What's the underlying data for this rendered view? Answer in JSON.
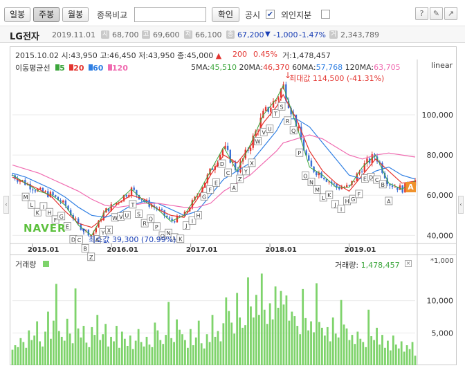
{
  "toolbar": {
    "periods": [
      {
        "label": "일봉",
        "active": false
      },
      {
        "label": "주봉",
        "active": true
      },
      {
        "label": "월봉",
        "active": false
      }
    ],
    "compare_label": "종목비교",
    "compare_value": "",
    "confirm_label": "확인",
    "disclosure_label": "공시",
    "disclosure_checked": true,
    "foreign_label": "외인지분",
    "foreign_checked": false,
    "tool_icons": [
      "pin-icon",
      "eraser-icon",
      "trend-icon"
    ]
  },
  "stock": {
    "name": "LG전자",
    "date": "2019.11.01",
    "open": "68,700",
    "high": "69,600",
    "low": "66,100",
    "close": "67,200",
    "change": "-1,000",
    "change_pct": "-1.47%",
    "volume": "2,343,789",
    "icons": [
      "open-icon",
      "high-icon",
      "low-icon",
      "close-icon",
      "volume-icon"
    ]
  },
  "ohlc": {
    "date": "2015.10.02",
    "open_label": "시:",
    "open": "43,950",
    "high_label": "고:",
    "high": "46,450",
    "low_label": "저:",
    "low": "43,950",
    "close_label": "종:",
    "close": "45,000",
    "change": "200",
    "change_pct": "0.45%",
    "volume_label": "거:",
    "volume": "1,478,457"
  },
  "ma_legend": {
    "title": "이동평균선",
    "items": [
      {
        "label": "5",
        "color": "#3ca63c"
      },
      {
        "label": "20",
        "color": "#e3342f"
      },
      {
        "label": "60",
        "color": "#2f7fe3"
      },
      {
        "label": "120",
        "color": "#f06ab0"
      }
    ]
  },
  "ma_values": [
    {
      "label": "5MA:",
      "value": "45,510",
      "color": "#3ca63c"
    },
    {
      "label": "20MA:",
      "value": "46,370",
      "color": "#e3342f"
    },
    {
      "label": "60MA:",
      "value": "57,768",
      "color": "#2f7fe3"
    },
    {
      "label": "120MA:",
      "value": "63,705",
      "color": "#f06ab0"
    }
  ],
  "scale_label": "linear",
  "annotations": {
    "max_label": "최대값 114,500 (-41.31%)",
    "min_label": "최소값 39,300 (70.99%)",
    "watermark": "NAVER",
    "latest_badge": "A"
  },
  "volume_panel": {
    "label": "거래량",
    "value_label": "거래량:",
    "value": "1,478,457",
    "unit": "*1,000",
    "color": "#7ed36b"
  },
  "chart_data": [
    {
      "type": "candlestick",
      "title": "",
      "x_ticks": [
        "2015.01",
        "2016.01",
        "2017.01",
        "2018.01",
        "2019.01"
      ],
      "y_ticks": [
        "40,000",
        "60,000",
        "80,000",
        "100,000"
      ],
      "ylim": [
        36000,
        122000
      ],
      "up_color": "#e3342f",
      "down_color": "#3a6fd6",
      "close_series": [
        {
          "t": "2014.10",
          "v": 70000
        },
        {
          "t": "2014.12",
          "v": 66000
        },
        {
          "t": "2015.02",
          "v": 62000
        },
        {
          "t": "2015.04",
          "v": 60000
        },
        {
          "t": "2015.06",
          "v": 55000
        },
        {
          "t": "2015.08",
          "v": 45000
        },
        {
          "t": "2015.10",
          "v": 40000
        },
        {
          "t": "2015.12",
          "v": 52000
        },
        {
          "t": "2016.02",
          "v": 57000
        },
        {
          "t": "2016.04",
          "v": 63000
        },
        {
          "t": "2016.06",
          "v": 57000
        },
        {
          "t": "2016.08",
          "v": 53000
        },
        {
          "t": "2016.10",
          "v": 47000
        },
        {
          "t": "2016.12",
          "v": 50000
        },
        {
          "t": "2017.02",
          "v": 60000
        },
        {
          "t": "2017.04",
          "v": 72000
        },
        {
          "t": "2017.06",
          "v": 84000
        },
        {
          "t": "2017.08",
          "v": 72000
        },
        {
          "t": "2017.10",
          "v": 85000
        },
        {
          "t": "2017.12",
          "v": 100000
        },
        {
          "t": "2018.02",
          "v": 108000
        },
        {
          "t": "2018.03",
          "v": 114500
        },
        {
          "t": "2018.05",
          "v": 95000
        },
        {
          "t": "2018.07",
          "v": 74000
        },
        {
          "t": "2018.09",
          "v": 70000
        },
        {
          "t": "2018.11",
          "v": 64000
        },
        {
          "t": "2019.01",
          "v": 64000
        },
        {
          "t": "2019.03",
          "v": 74000
        },
        {
          "t": "2019.05",
          "v": 80000
        },
        {
          "t": "2019.07",
          "v": 66000
        },
        {
          "t": "2019.09",
          "v": 63000
        },
        {
          "t": "2019.11",
          "v": 67200
        }
      ],
      "series": [
        {
          "name": "20",
          "values": [
            69000,
            66000,
            63000,
            59000,
            52000,
            46000,
            44000,
            49000,
            56000,
            60000,
            58000,
            53000,
            50000,
            49000,
            58000,
            70000,
            80000,
            76000,
            84000,
            96000,
            104000,
            110000,
            98000,
            82000,
            72000,
            66000,
            62000,
            70000,
            78000,
            72000,
            66000,
            67000
          ]
        },
        {
          "name": "60",
          "values": [
            71000,
            69000,
            66000,
            63000,
            59000,
            54000,
            50000,
            49000,
            51000,
            55000,
            57000,
            56000,
            53000,
            50000,
            52000,
            60000,
            68000,
            72000,
            76000,
            84000,
            92000,
            98000,
            98000,
            94000,
            86000,
            78000,
            70000,
            68000,
            72000,
            74000,
            70000,
            68000
          ]
        },
        {
          "name": "120",
          "values": [
            75000,
            73000,
            71000,
            68000,
            65000,
            62000,
            58000,
            55000,
            54000,
            55000,
            56000,
            56000,
            55000,
            54000,
            54000,
            56000,
            62000,
            66000,
            70000,
            76000,
            82000,
            86000,
            88000,
            90000,
            88000,
            84000,
            80000,
            78000,
            80000,
            81000,
            80000,
            79000
          ]
        }
      ],
      "event_markers": [
        "M",
        "L",
        "K",
        "I",
        "H",
        "F",
        "G",
        "E",
        "D",
        "C",
        "B",
        "Z",
        "A",
        "Y",
        "X",
        "W",
        "V",
        "U",
        "T",
        "S",
        "R",
        "Q",
        "P",
        "O",
        "N",
        "L",
        "K",
        "J",
        "I",
        "H",
        "G",
        "F",
        "E",
        "D",
        "C",
        "A",
        "Z",
        "Y",
        "X",
        "W",
        "V",
        "U",
        "T",
        "S",
        "R",
        "Q",
        "P",
        "O",
        "N",
        "M",
        "L",
        "K",
        "J",
        "I",
        "H",
        "G",
        "F",
        "E",
        "D",
        "C",
        "B",
        "A"
      ]
    },
    {
      "type": "bar",
      "title": "",
      "y_ticks": [
        "5,000",
        "10,000"
      ],
      "ylim": [
        0,
        15000
      ],
      "unit": "*1,000",
      "values": [
        2400,
        3100,
        2800,
        4200,
        3600,
        2700,
        5400,
        3900,
        4600,
        6800,
        3700,
        2900,
        5200,
        8300,
        4100,
        6900,
        12600,
        5300,
        4400,
        3800,
        7200,
        4900,
        3400,
        11900,
        5700,
        4300,
        6100,
        3500,
        2800,
        5900,
        4700,
        7800,
        3900,
        4800,
        6400,
        2900,
        4400,
        3700,
        6100,
        2700,
        5200,
        4100,
        3000,
        4600,
        2500,
        3800,
        5600,
        3600,
        2900,
        4400,
        3200,
        2800,
        6600,
        5400,
        3900,
        3300,
        4700,
        9800,
        4200,
        3600,
        7100,
        5500,
        4800,
        3900,
        2700,
        5600,
        3100,
        4300,
        6900,
        3400,
        2600,
        4800,
        3600,
        7800,
        4400,
        5300,
        3700,
        6500,
        10500,
        8400,
        6600,
        4900,
        11200,
        7400,
        5800,
        6200,
        13600,
        9100,
        7400,
        10900,
        7800,
        14200,
        8600,
        6400,
        9600,
        7100,
        12200,
        8900,
        11500,
        9400,
        10800,
        6900,
        8300,
        7600,
        6100,
        4800,
        11800,
        7300,
        5400,
        6800,
        5100,
        12700,
        6700,
        5800,
        4600,
        5900,
        3700,
        7400,
        4900,
        4300,
        10100,
        6300,
        5700,
        3900,
        4700,
        3300,
        5200,
        4100,
        3600,
        2800,
        8600,
        4500,
        3900,
        5800,
        3200,
        4700,
        2700,
        3800,
        2300,
        4600,
        3200,
        2600,
        3700,
        2100,
        3100,
        2500,
        3600,
        1478
      ]
    }
  ]
}
